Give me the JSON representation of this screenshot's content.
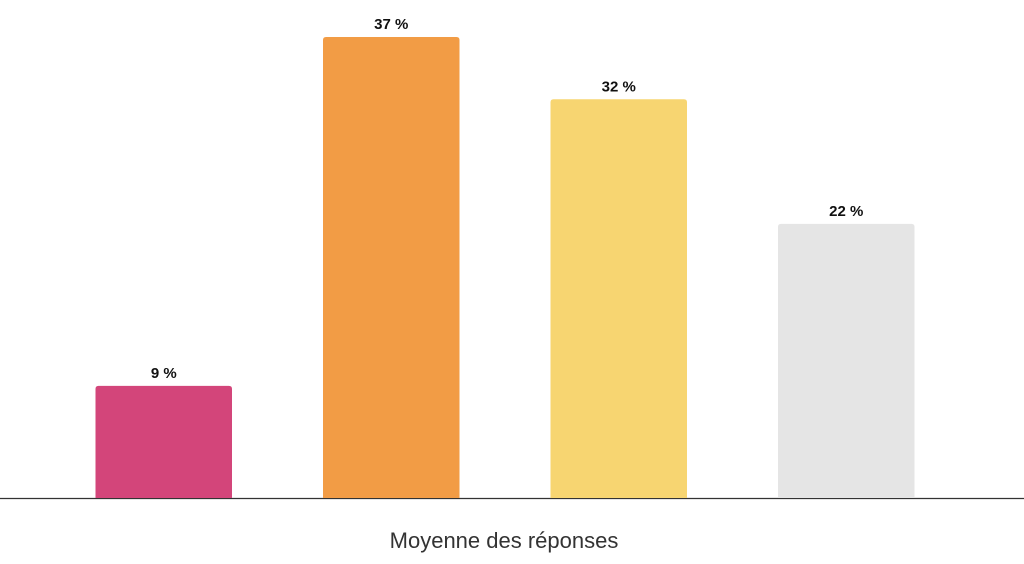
{
  "chart_data": {
    "type": "bar",
    "x_label": "Moyenne des réponses",
    "categories": [
      null,
      null,
      null,
      null
    ],
    "values": [
      9,
      37,
      32,
      22
    ],
    "value_labels": [
      "9 %",
      "37 %",
      "32 %",
      "22 %"
    ],
    "colors": [
      "#d3457a",
      "#f29c45",
      "#f7d571",
      "#e5e5e5"
    ]
  }
}
